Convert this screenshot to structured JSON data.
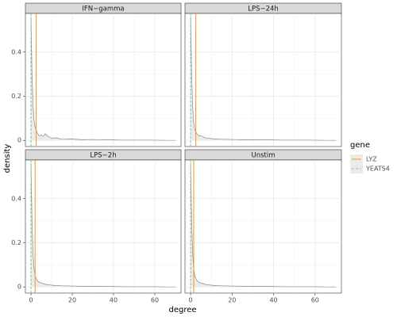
{
  "chart_data": [
    {
      "type": "density",
      "title": "IFN−gamma",
      "x": [
        0,
        0.5,
        1,
        1.5,
        2,
        3,
        4,
        5,
        6,
        7,
        8,
        10,
        12,
        15,
        20,
        25,
        30,
        35,
        40,
        45,
        50,
        55,
        60,
        65,
        70
      ],
      "values": [
        0.56,
        0.3,
        0.16,
        0.09,
        0.06,
        0.035,
        0.02,
        0.025,
        0.018,
        0.03,
        0.02,
        0.01,
        0.012,
        0.005,
        0.006,
        0.003,
        0.004,
        0.002,
        0.002,
        0.001,
        0.001,
        0.001,
        0.001,
        0,
        0
      ],
      "gene_x": [
        2.5,
        0
      ],
      "xlim": [
        -2.7,
        72.7
      ],
      "ylim": [
        -0.028,
        0.575
      ],
      "xticks": [
        0,
        20,
        40,
        60
      ],
      "yticks": [
        0.0,
        0.2,
        0.4
      ]
    },
    {
      "type": "density",
      "title": "LPS−24h",
      "x": [
        0,
        0.5,
        1,
        1.5,
        2,
        3,
        4,
        5,
        6,
        7,
        8,
        10,
        12,
        15,
        20,
        25,
        30,
        35,
        40,
        45,
        50,
        55,
        60,
        65,
        70
      ],
      "values": [
        0.56,
        0.3,
        0.15,
        0.08,
        0.05,
        0.03,
        0.02,
        0.022,
        0.015,
        0.012,
        0.01,
        0.008,
        0.006,
        0.005,
        0.004,
        0.003,
        0.003,
        0.002,
        0.002,
        0.001,
        0.001,
        0.001,
        0.001,
        0,
        0
      ],
      "gene_x": [
        2.5,
        0
      ],
      "xlim": [
        -2.7,
        72.7
      ],
      "ylim": [
        -0.028,
        0.575
      ],
      "xticks": [
        0,
        20,
        40,
        60
      ],
      "yticks": [
        0.0,
        0.2,
        0.4
      ]
    },
    {
      "type": "density",
      "title": "LPS−2h",
      "x": [
        0,
        0.5,
        1,
        1.5,
        2,
        3,
        4,
        5,
        6,
        7,
        8,
        10,
        12,
        15,
        20,
        25,
        30,
        35,
        40,
        45,
        50,
        55,
        60,
        65,
        70
      ],
      "values": [
        0.56,
        0.3,
        0.15,
        0.08,
        0.05,
        0.03,
        0.02,
        0.018,
        0.015,
        0.012,
        0.01,
        0.008,
        0.006,
        0.005,
        0.004,
        0.003,
        0.003,
        0.002,
        0.002,
        0.001,
        0.001,
        0.001,
        0.001,
        0,
        0
      ],
      "gene_x": [
        2,
        0
      ],
      "xlim": [
        -2.7,
        72.7
      ],
      "ylim": [
        -0.028,
        0.575
      ],
      "xticks": [
        0,
        20,
        40,
        60
      ],
      "yticks": [
        0.0,
        0.2,
        0.4
      ]
    },
    {
      "type": "density",
      "title": "Unstim",
      "x": [
        0,
        0.5,
        1,
        1.5,
        2,
        3,
        4,
        5,
        6,
        7,
        8,
        10,
        12,
        15,
        20,
        25,
        30,
        35,
        40,
        45,
        50,
        55,
        60,
        65,
        70
      ],
      "values": [
        0.56,
        0.3,
        0.15,
        0.08,
        0.05,
        0.03,
        0.02,
        0.018,
        0.015,
        0.012,
        0.01,
        0.008,
        0.006,
        0.005,
        0.004,
        0.003,
        0.003,
        0.002,
        0.002,
        0.001,
        0.001,
        0.001,
        0.001,
        0,
        0
      ],
      "gene_x": [
        1.5,
        0
      ],
      "xlim": [
        -2.7,
        72.7
      ],
      "ylim": [
        -0.028,
        0.575
      ],
      "xticks": [
        0,
        20,
        40,
        60
      ],
      "yticks": [
        0.0,
        0.2,
        0.4
      ]
    }
  ],
  "shared": {
    "xlabel": "degree",
    "ylabel": "density",
    "legend_title": "gene",
    "genes": [
      {
        "name": "LYZ",
        "color": "#f59a3c",
        "dash": false
      },
      {
        "name": "YEATS4",
        "color": "#7cc4b4",
        "dash": true
      }
    ]
  }
}
